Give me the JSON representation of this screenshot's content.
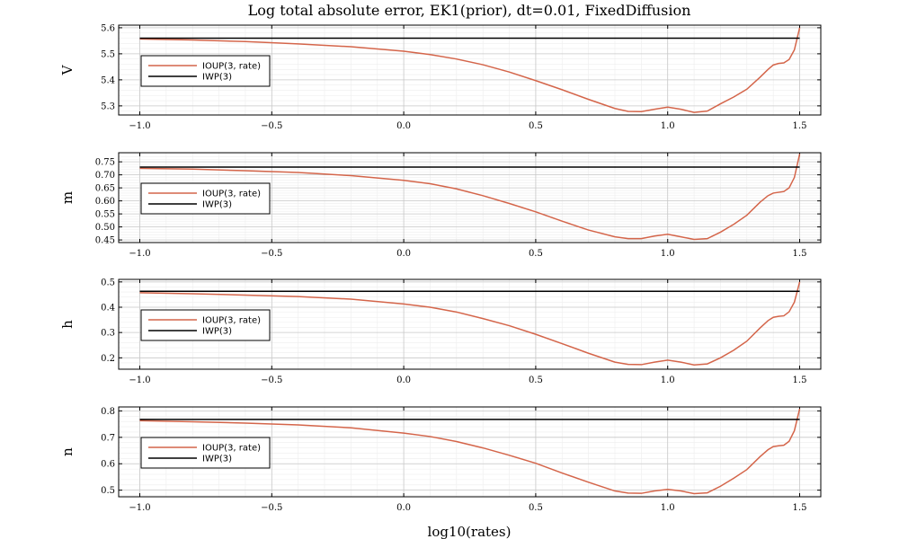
{
  "chart_data": {
    "type": "line",
    "title": "Log total absolute error, EK1(prior), dt=0.01, FixedDiffusion",
    "xlabel": "log10(rates)",
    "xlim": [
      -1.08,
      1.58
    ],
    "xticks": [
      -1.0,
      -0.5,
      0.0,
      0.5,
      1.0,
      1.5
    ],
    "xtick_labels": [
      "−1.0",
      "−0.5",
      "0.0",
      "0.5",
      "1.0",
      "1.5"
    ],
    "grid": true,
    "legend_position": "left-middle",
    "series_colors": {
      "IOUP(3, rate)": "#d4654a",
      "IWP(3)": "#000000"
    },
    "x": [
      -1.0,
      -0.8,
      -0.6,
      -0.4,
      -0.2,
      0.0,
      0.1,
      0.2,
      0.3,
      0.4,
      0.5,
      0.6,
      0.7,
      0.8,
      0.85,
      0.9,
      0.95,
      1.0,
      1.05,
      1.1,
      1.15,
      1.2,
      1.25,
      1.3,
      1.35,
      1.38,
      1.4,
      1.42,
      1.44,
      1.46,
      1.48,
      1.5
    ],
    "panels": [
      {
        "ylabel": "V",
        "ylim": [
          5.265,
          5.61
        ],
        "yticks": [
          5.3,
          5.4,
          5.5,
          5.6
        ],
        "ytick_labels": [
          "5.3",
          "5.4",
          "5.5",
          "5.6"
        ],
        "series": [
          {
            "name": "IOUP(3, rate)",
            "values": [
              5.557,
              5.553,
              5.547,
              5.538,
              5.527,
              5.51,
              5.497,
              5.48,
              5.458,
              5.43,
              5.397,
              5.362,
              5.325,
              5.29,
              5.279,
              5.278,
              5.287,
              5.295,
              5.287,
              5.275,
              5.28,
              5.308,
              5.334,
              5.364,
              5.41,
              5.44,
              5.457,
              5.463,
              5.465,
              5.478,
              5.515,
              5.6
            ]
          },
          {
            "name": "IWP(3)",
            "values": [
              5.56,
              5.56,
              5.56,
              5.56,
              5.56,
              5.56,
              5.56,
              5.56,
              5.56,
              5.56,
              5.56,
              5.56,
              5.56,
              5.56,
              5.56,
              5.56,
              5.56,
              5.56,
              5.56,
              5.56,
              5.56,
              5.56,
              5.56,
              5.56,
              5.56,
              5.56,
              5.56,
              5.56,
              5.56,
              5.56,
              5.56,
              5.56
            ]
          }
        ]
      },
      {
        "ylabel": "m",
        "ylim": [
          0.44,
          0.785
        ],
        "yticks": [
          0.45,
          0.5,
          0.55,
          0.6,
          0.65,
          0.7,
          0.75
        ],
        "ytick_labels": [
          "0.45",
          "0.50",
          "0.55",
          "0.60",
          "0.65",
          "0.70",
          "0.75"
        ],
        "series": [
          {
            "name": "IOUP(3, rate)",
            "values": [
              0.725,
              0.722,
              0.716,
              0.709,
              0.697,
              0.679,
              0.666,
              0.646,
              0.62,
              0.59,
              0.558,
              0.522,
              0.488,
              0.462,
              0.455,
              0.455,
              0.465,
              0.472,
              0.462,
              0.452,
              0.455,
              0.48,
              0.51,
              0.545,
              0.595,
              0.62,
              0.63,
              0.633,
              0.636,
              0.65,
              0.69,
              0.78
            ]
          },
          {
            "name": "IWP(3)",
            "values": [
              0.73,
              0.73,
              0.73,
              0.73,
              0.73,
              0.73,
              0.73,
              0.73,
              0.73,
              0.73,
              0.73,
              0.73,
              0.73,
              0.73,
              0.73,
              0.73,
              0.73,
              0.73,
              0.73,
              0.73,
              0.73,
              0.73,
              0.73,
              0.73,
              0.73,
              0.73,
              0.73,
              0.73,
              0.73,
              0.73,
              0.73,
              0.73
            ]
          }
        ]
      },
      {
        "ylabel": "h",
        "ylim": [
          0.155,
          0.51
        ],
        "yticks": [
          0.2,
          0.3,
          0.4,
          0.5
        ],
        "ytick_labels": [
          "0.2",
          "0.3",
          "0.4",
          "0.5"
        ],
        "series": [
          {
            "name": "IOUP(3, rate)",
            "values": [
              0.457,
              0.453,
              0.448,
              0.442,
              0.432,
              0.413,
              0.4,
              0.381,
              0.355,
              0.327,
              0.293,
              0.256,
              0.218,
              0.183,
              0.174,
              0.173,
              0.183,
              0.191,
              0.183,
              0.172,
              0.176,
              0.2,
              0.23,
              0.266,
              0.318,
              0.347,
              0.36,
              0.364,
              0.366,
              0.382,
              0.42,
              0.5
            ]
          },
          {
            "name": "IWP(3)",
            "values": [
              0.463,
              0.463,
              0.463,
              0.463,
              0.463,
              0.463,
              0.463,
              0.463,
              0.463,
              0.463,
              0.463,
              0.463,
              0.463,
              0.463,
              0.463,
              0.463,
              0.463,
              0.463,
              0.463,
              0.463,
              0.463,
              0.463,
              0.463,
              0.463,
              0.463,
              0.463,
              0.463,
              0.463,
              0.463,
              0.463,
              0.463,
              0.463
            ]
          }
        ]
      },
      {
        "ylabel": "n",
        "ylim": [
          0.475,
          0.815
        ],
        "yticks": [
          0.5,
          0.6,
          0.7,
          0.8
        ],
        "ytick_labels": [
          "0.5",
          "0.6",
          "0.7",
          "0.8"
        ],
        "series": [
          {
            "name": "IOUP(3, rate)",
            "values": [
              0.763,
              0.759,
              0.754,
              0.747,
              0.736,
              0.716,
              0.703,
              0.684,
              0.66,
              0.632,
              0.602,
              0.565,
              0.53,
              0.497,
              0.489,
              0.488,
              0.497,
              0.503,
              0.497,
              0.487,
              0.49,
              0.515,
              0.545,
              0.578,
              0.627,
              0.653,
              0.665,
              0.668,
              0.67,
              0.685,
              0.725,
              0.808
            ]
          },
          {
            "name": "IWP(3)",
            "values": [
              0.768,
              0.768,
              0.768,
              0.768,
              0.768,
              0.768,
              0.768,
              0.768,
              0.768,
              0.768,
              0.768,
              0.768,
              0.768,
              0.768,
              0.768,
              0.768,
              0.768,
              0.768,
              0.768,
              0.768,
              0.768,
              0.768,
              0.768,
              0.768,
              0.768,
              0.768,
              0.768,
              0.768,
              0.768,
              0.768,
              0.768,
              0.768
            ]
          }
        ]
      }
    ]
  }
}
